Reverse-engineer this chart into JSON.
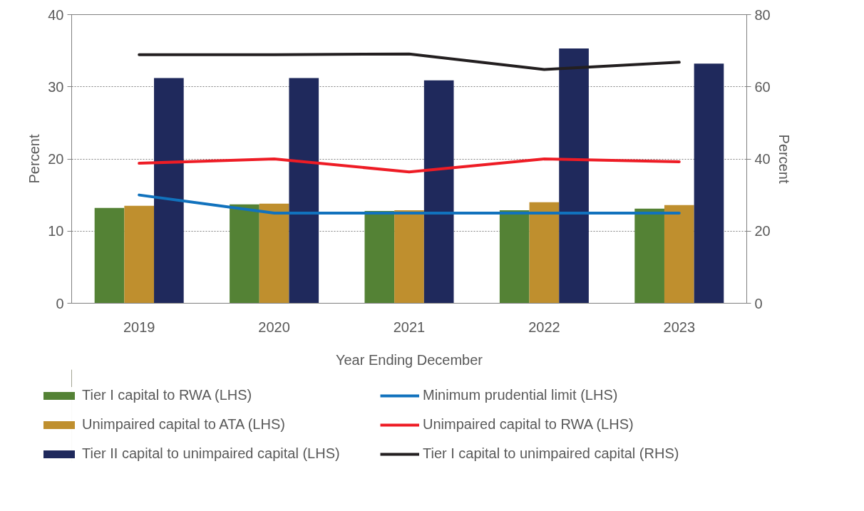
{
  "chart_data": {
    "type": "bar",
    "xlabel": "Year Ending December",
    "ylabel": "Percent",
    "y2label": "Percent",
    "categories": [
      "2019",
      "2020",
      "2021",
      "2022",
      "2023"
    ],
    "series": [
      {
        "name": "Tier I capital to RWA (LHS)",
        "color": "#548235",
        "values": [
          13.2,
          13.7,
          12.8,
          12.9,
          13.1
        ]
      },
      {
        "name": "Unimpaired capital to ATA (LHS)",
        "color": "#bf8f2e",
        "values": [
          13.5,
          13.8,
          12.9,
          14.0,
          13.6
        ]
      },
      {
        "name": "Tier II capital to unimpaired capital (LHS)",
        "color": "#1f295c",
        "values": [
          31.2,
          31.2,
          30.9,
          35.3,
          33.2
        ]
      },
      {
        "name": "Minimum prudential limit (LHS)",
        "type": "line",
        "color": "#1172bd",
        "values": [
          15.0,
          12.5,
          12.5,
          12.5,
          12.5
        ]
      },
      {
        "name": "Unimpaired capital to RWA (LHS)",
        "type": "line",
        "color": "#ee1c25",
        "values": [
          19.4,
          20.0,
          18.2,
          20.0,
          19.6
        ]
      },
      {
        "name": "Tier I capital to unimpaired capital (RHS)",
        "type": "line",
        "color": "#231f20",
        "axis": "y2",
        "values": [
          68.9,
          68.9,
          69.1,
          64.8,
          66.8
        ]
      }
    ],
    "ylim": [
      0,
      40
    ],
    "yticks": [
      0,
      10,
      20,
      30,
      40
    ],
    "y2lim": [
      0,
      80
    ],
    "y2ticks": [
      0,
      20,
      40,
      60,
      80
    ],
    "grid": "y",
    "legend": "bottom",
    "line_style": "solid",
    "marker": "none"
  }
}
